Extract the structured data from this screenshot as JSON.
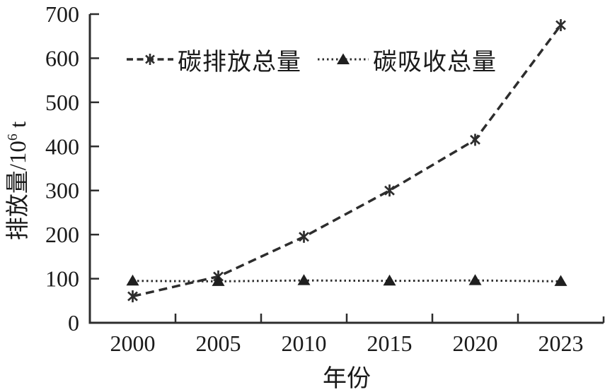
{
  "figure": {
    "background": "#ffffff",
    "ink_color": "#2d2d2d",
    "text_color": "#1a1a1a"
  },
  "chart_data": {
    "type": "line",
    "title": "",
    "xlabel": "年份",
    "ylabel": "排放量/10⁶ t",
    "ylabel_parts": [
      "排放量/10",
      "6",
      " t"
    ],
    "categories": [
      "2000",
      "2005",
      "2010",
      "2015",
      "2020",
      "2023"
    ],
    "ylim": [
      0,
      700
    ],
    "ytick_step": 100,
    "ytick_labels": [
      "0",
      "100",
      "200",
      "300",
      "400",
      "500",
      "600",
      "700"
    ],
    "grid": false,
    "legend_position": "inside-top-left",
    "series": [
      {
        "name": "碳排放总量",
        "values": [
          60,
          105,
          195,
          300,
          415,
          675
        ],
        "line_style": "dashed",
        "marker": "asterisk"
      },
      {
        "name": "碳吸收总量",
        "values": [
          95,
          94,
          96,
          95,
          96,
          94
        ],
        "line_style": "dotted",
        "marker": "triangle"
      }
    ]
  }
}
